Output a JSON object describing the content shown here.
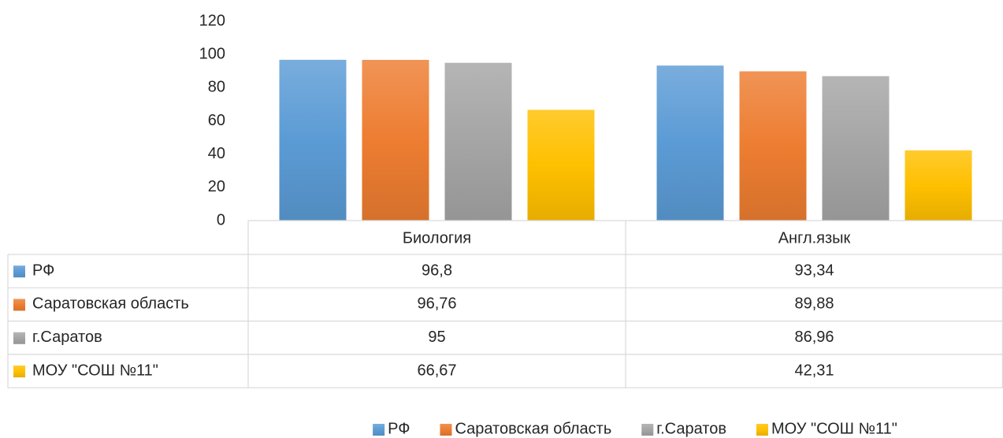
{
  "chart_data": {
    "type": "bar",
    "categories": [
      "Биология",
      "Англ.язык"
    ],
    "series": [
      {
        "name": "РФ",
        "color": "#5b9bd5",
        "values": [
          96.8,
          93.34
        ],
        "value_labels": [
          "96,8",
          "93,34"
        ]
      },
      {
        "name": "Саратовская область",
        "color": "#ed7d31",
        "values": [
          96.76,
          89.88
        ],
        "value_labels": [
          "96,76",
          "89,88"
        ]
      },
      {
        "name": "г.Саратов",
        "color": "#a5a5a5",
        "values": [
          95,
          86.96
        ],
        "value_labels": [
          "95",
          "86,96"
        ]
      },
      {
        "name": "МОУ \"СОШ №11\"",
        "color": "#ffc000",
        "values": [
          66.67,
          42.31
        ],
        "value_labels": [
          "66,67",
          "42,31"
        ]
      }
    ],
    "ylim": [
      0,
      120
    ],
    "yticks": [
      0,
      20,
      40,
      60,
      80,
      100,
      120
    ],
    "grid": false,
    "legend": "bottom"
  }
}
